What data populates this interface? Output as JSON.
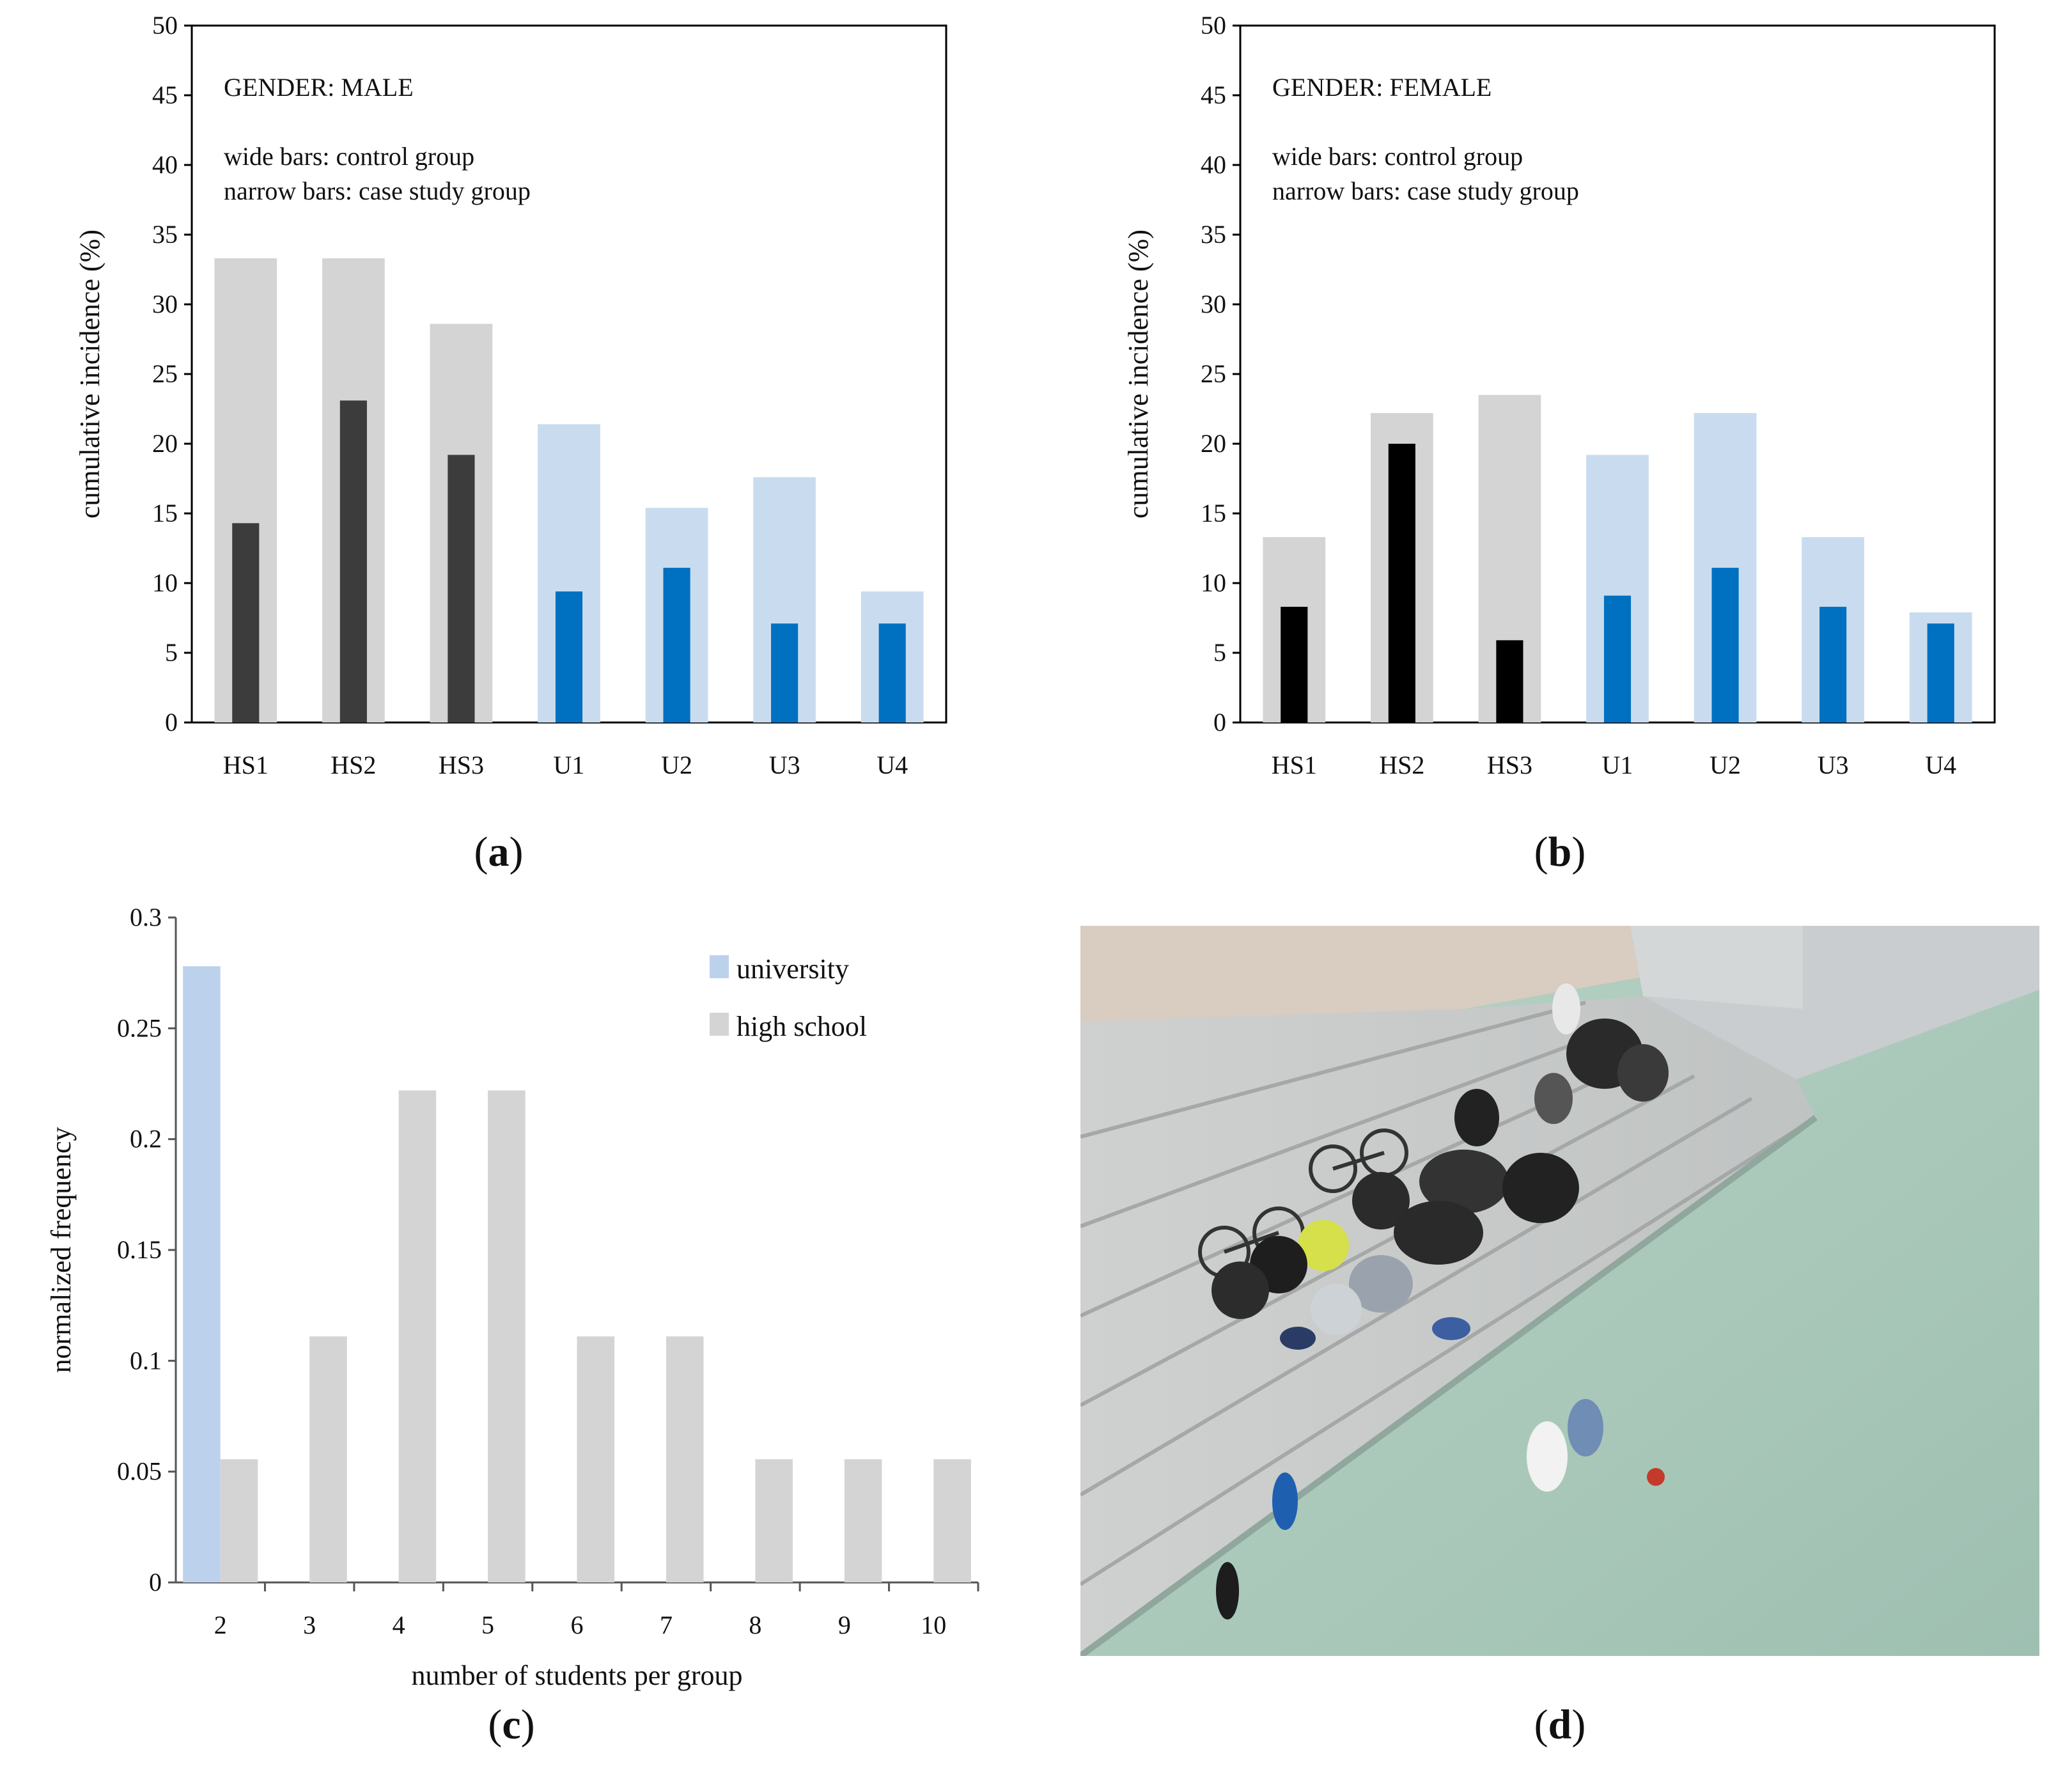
{
  "chart_data": [
    {
      "id": "a",
      "type": "bar",
      "panel_label": "a",
      "title": "GENDER: MALE",
      "notes": [
        "wide bars: control group",
        "narrow bars: case study group"
      ],
      "ylabel": "cumulative incidence (%)",
      "xlabel": "",
      "ylim": [
        0,
        50
      ],
      "yticks": [
        "0",
        "5",
        "10",
        "15",
        "20",
        "25",
        "30",
        "35",
        "40",
        "45",
        "50"
      ],
      "categories": [
        "HS1",
        "HS2",
        "HS3",
        "U1",
        "U2",
        "U3",
        "U4"
      ],
      "series": [
        {
          "name": "control group",
          "values": [
            33.3,
            33.3,
            28.6,
            21.4,
            15.4,
            17.6,
            9.4
          ]
        },
        {
          "name": "case study group",
          "values": [
            14.3,
            23.1,
            19.2,
            9.4,
            11.1,
            7.1,
            7.1
          ]
        }
      ]
    },
    {
      "id": "b",
      "type": "bar",
      "panel_label": "b",
      "title": "GENDER: FEMALE",
      "notes": [
        "wide bars: control group",
        "narrow bars: case study group"
      ],
      "ylabel": "cumulative incidence (%)",
      "xlabel": "",
      "ylim": [
        0,
        50
      ],
      "yticks": [
        "0",
        "5",
        "10",
        "15",
        "20",
        "25",
        "30",
        "35",
        "40",
        "45",
        "50"
      ],
      "categories": [
        "HS1",
        "HS2",
        "HS3",
        "U1",
        "U2",
        "U3",
        "U4"
      ],
      "series": [
        {
          "name": "control group",
          "values": [
            13.3,
            22.2,
            23.5,
            19.2,
            22.2,
            13.3,
            7.9
          ]
        },
        {
          "name": "case study group",
          "values": [
            8.3,
            20.0,
            5.9,
            9.1,
            11.1,
            8.3,
            7.1
          ]
        }
      ]
    },
    {
      "id": "c",
      "type": "bar",
      "panel_label": "c",
      "title": "",
      "ylabel": "normalized frequency",
      "xlabel": "number of students per group",
      "ylim": [
        0,
        0.3
      ],
      "yticks": [
        "0",
        "0.05",
        "0.1",
        "0.15",
        "0.2",
        "0.25",
        "0.3"
      ],
      "categories": [
        "2",
        "3",
        "4",
        "5",
        "6",
        "7",
        "8",
        "9",
        "10"
      ],
      "legend": [
        "university",
        "high school"
      ],
      "legend_position": "top-right",
      "series": [
        {
          "name": "university",
          "values": [
            0.278,
            0,
            0,
            0,
            0,
            0,
            0,
            0,
            0
          ]
        },
        {
          "name": "high school",
          "values": [
            0.0556,
            0.111,
            0.222,
            0.222,
            0.111,
            0.111,
            0.0556,
            0.0556,
            0.0556
          ]
        }
      ]
    }
  ],
  "photo": {
    "panel_label": "d",
    "subject": "students sitting on outdoor steps beside a sports court"
  },
  "colors": {
    "hs_control": "#d4d4d4",
    "hs_case_male": "#3c3c3c",
    "hs_case_female": "#000000",
    "u_control": "#c9dcef",
    "u_case": "#0070c0",
    "university": "#bcd1ec",
    "high_school": "#d4d4d4"
  }
}
